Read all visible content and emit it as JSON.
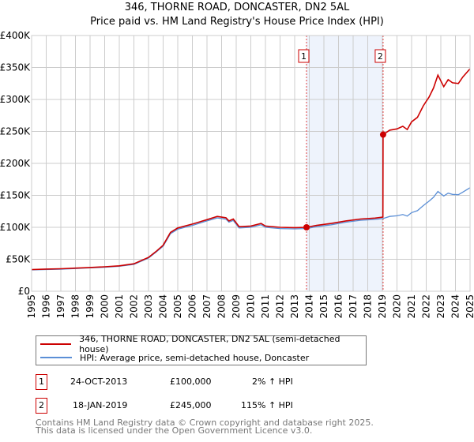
{
  "chart_data": {
    "type": "line",
    "title": "346, THORNE ROAD, DONCASTER, DN2 5AL",
    "subtitle": "Price paid vs. HM Land Registry's House Price Index (HPI)",
    "xlabel": "",
    "ylabel": "",
    "xlim": [
      1995,
      2025
    ],
    "ylim": [
      0,
      400000
    ],
    "yticks": [
      0,
      50000,
      100000,
      150000,
      200000,
      250000,
      300000,
      350000,
      400000
    ],
    "ytick_labels": [
      "£0",
      "£50K",
      "£100K",
      "£150K",
      "£200K",
      "£250K",
      "£300K",
      "£350K",
      "£400K"
    ],
    "xticks": [
      "1995",
      "1996",
      "1997",
      "1998",
      "1999",
      "2000",
      "2001",
      "2002",
      "2003",
      "2004",
      "2005",
      "2006",
      "2007",
      "2008",
      "2009",
      "2010",
      "2011",
      "2012",
      "2013",
      "2014",
      "2015",
      "2016",
      "2017",
      "2018",
      "2019",
      "2020",
      "2021",
      "2022",
      "2023",
      "2024",
      "2025"
    ],
    "grid": true,
    "highlight_range": [
      2013.81,
      2019.05
    ],
    "series": [
      {
        "name": "346, THORNE ROAD, DONCASTER, DN2 5AL (semi-detached house)",
        "color": "#cc0000",
        "x": [
          1995,
          1996,
          1997,
          1998,
          1999,
          2000,
          2001,
          2002,
          2003,
          2003.5,
          2004,
          2004.5,
          2005,
          2006,
          2007,
          2007.7,
          2008.3,
          2008.5,
          2008.8,
          2009.2,
          2010,
          2010.7,
          2011,
          2012,
          2013,
          2013.81,
          2014.5,
          2015.5,
          2016.5,
          2017.5,
          2018.5,
          2019.04,
          2019.05,
          2019.5,
          2020,
          2020.4,
          2020.7,
          2021,
          2021.4,
          2021.8,
          2022.2,
          2022.5,
          2022.8,
          2023.2,
          2023.5,
          2023.8,
          2024.2,
          2024.5,
          2025
        ],
        "values": [
          34000,
          34700,
          35200,
          36200,
          37200,
          38300,
          39800,
          43000,
          53000,
          62000,
          72000,
          92000,
          99000,
          105000,
          112000,
          117000,
          115000,
          110000,
          113000,
          101000,
          102000,
          106000,
          102000,
          100000,
          99500,
          100000,
          103000,
          106000,
          110000,
          113000,
          114500,
          116000,
          245000,
          252000,
          254000,
          258000,
          253000,
          265000,
          272000,
          290000,
          304000,
          318000,
          338000,
          320000,
          331000,
          326000,
          325000,
          335000,
          348000
        ]
      },
      {
        "name": "HPI: Average price, semi-detached house, Doncaster",
        "color": "#5b8fd6",
        "x": [
          1995,
          1996,
          1997,
          1998,
          1999,
          2000,
          2001,
          2002,
          2003,
          2003.5,
          2004,
          2004.5,
          2005,
          2006,
          2007,
          2007.7,
          2008.3,
          2008.5,
          2008.8,
          2009.2,
          2010,
          2010.7,
          2011,
          2012,
          2013,
          2013.81,
          2014.5,
          2015.5,
          2016.5,
          2017.5,
          2018.5,
          2019.05,
          2019.5,
          2020,
          2020.4,
          2020.7,
          2021,
          2021.4,
          2021.8,
          2022.2,
          2022.5,
          2022.8,
          2023.2,
          2023.5,
          2023.8,
          2024.2,
          2024.5,
          2025
        ],
        "values": [
          33300,
          34000,
          34500,
          35500,
          36500,
          37500,
          39000,
          42000,
          52000,
          61000,
          70500,
          90000,
          97000,
          103000,
          110000,
          114700,
          112700,
          108000,
          110700,
          99000,
          100000,
          104000,
          100000,
          98000,
          97500,
          98000,
          101000,
          104000,
          108000,
          111000,
          112300,
          113700,
          117000,
          118000,
          120000,
          117500,
          123000,
          126000,
          134000,
          141000,
          147000,
          156000,
          149000,
          153500,
          151500,
          151000,
          155000,
          162000
        ]
      }
    ],
    "annotations": [
      {
        "label": "1",
        "date": "24-OCT-2013",
        "price": "£100,000",
        "hpi": "2% ↑ HPI",
        "x": 2013.81,
        "y": 100000
      },
      {
        "label": "2",
        "date": "18-JAN-2019",
        "price": "£245,000",
        "hpi": "115% ↑ HPI",
        "x": 2019.05,
        "y": 245000
      }
    ]
  },
  "footer": {
    "line1": "Contains HM Land Registry data © Crown copyright and database right 2025.",
    "line2": "This data is licensed under the Open Government Licence v3.0."
  }
}
